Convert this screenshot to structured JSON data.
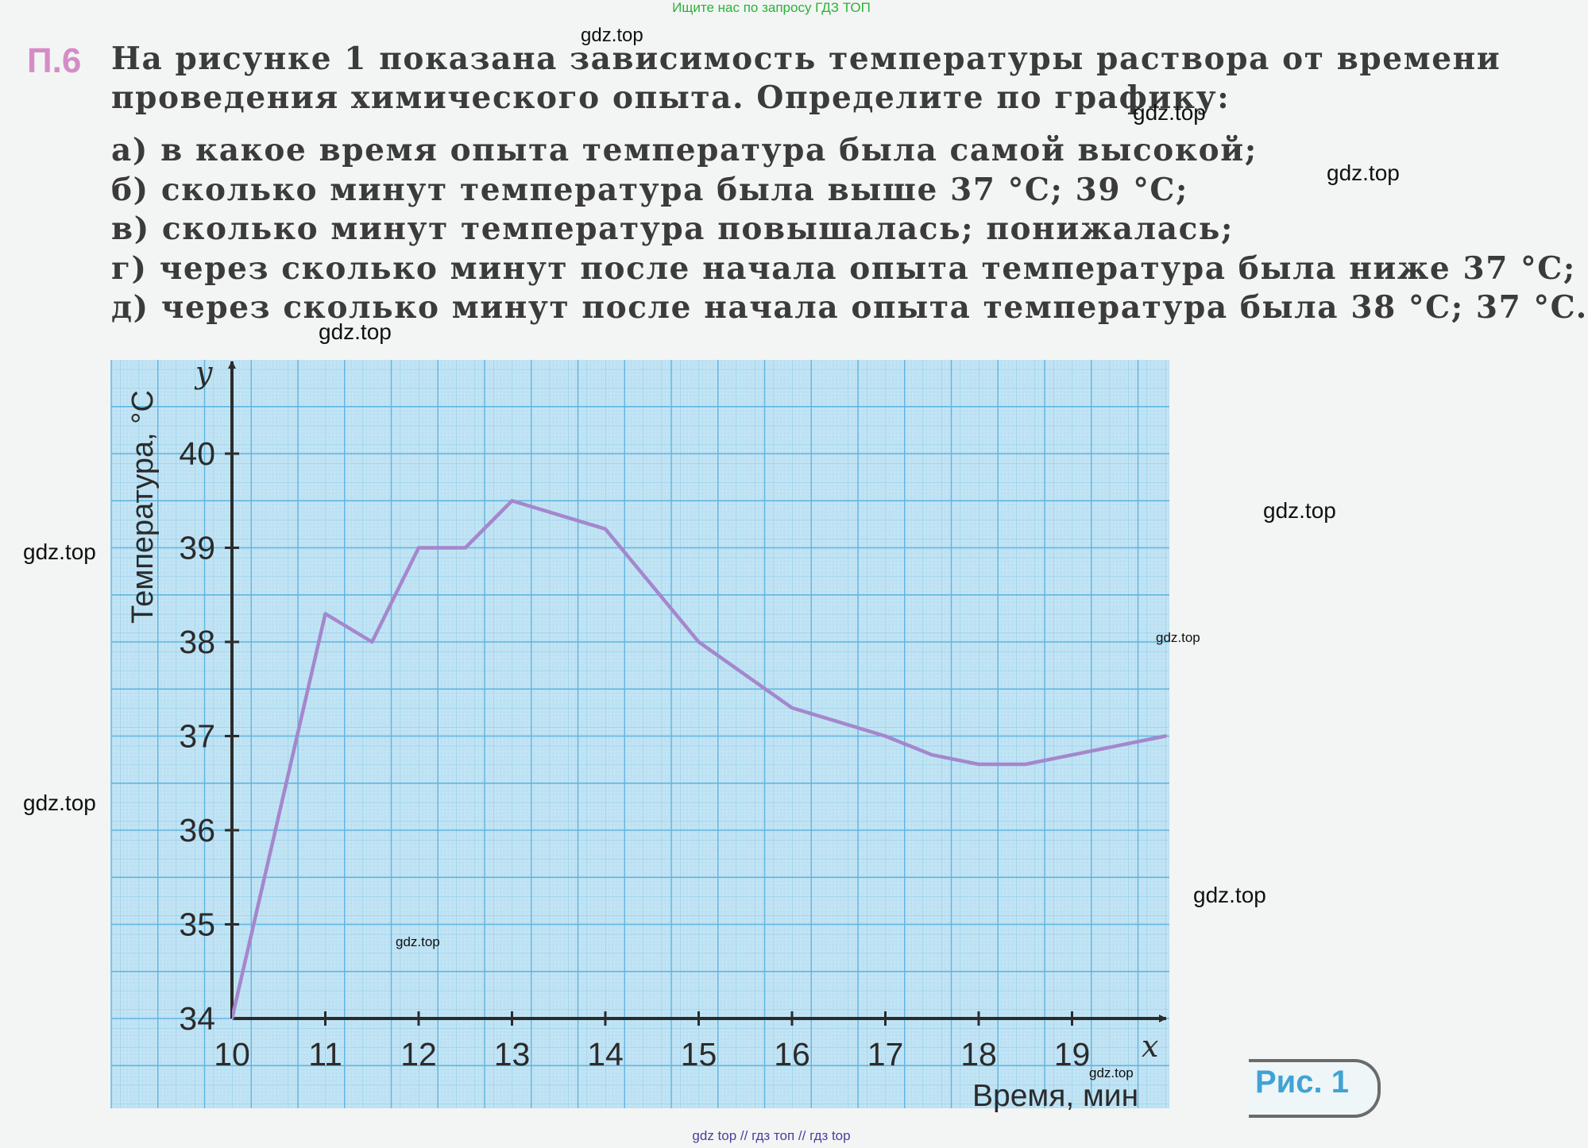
{
  "top_banner": "Ищите нас по запросу ГДЗ ТОП",
  "watermark": "gdz.top",
  "problem": {
    "number": "П.6",
    "text": "На рисунке 1 показана зависимость температуры раствора от времени проведения химического опыта. Определите по графику:",
    "questions": [
      "а) в какое время опыта температура была самой высокой;",
      "б) сколько минут температура была выше 37 °C; 39 °C;",
      "в) сколько минут температура повышалась; понижалась;",
      "г) через сколько минут после начала опыта температура была ниже 37 °C;",
      "д) через сколько минут после начала опыта температура была 38 °C; 37 °C."
    ]
  },
  "figure_label": "Рис. 1",
  "bottom_line": "gdz top  //  гдз топ  //  гдз top",
  "chart_data": {
    "type": "line",
    "xlabel": "Время, мин",
    "ylabel": "Температура, °C",
    "x_axis_letter": "x",
    "y_axis_letter": "y",
    "xlim": [
      10,
      19.85
    ],
    "ylim": [
      34,
      40.9
    ],
    "x_ticks": [
      10,
      11,
      12,
      13,
      14,
      15,
      16,
      17,
      18,
      19
    ],
    "y_ticks": [
      34,
      35,
      36,
      37,
      38,
      39,
      40
    ],
    "grid": true,
    "series": [
      {
        "x": [
          10,
          11,
          11.5,
          12,
          12.5,
          13,
          14,
          15,
          16,
          17,
          17.5,
          18,
          18.5,
          19,
          20
        ],
        "y": [
          34,
          38.3,
          38,
          39,
          39,
          39.5,
          39.2,
          38,
          37.3,
          37,
          36.8,
          36.7,
          36.7,
          36.8,
          37
        ]
      }
    ],
    "colors": {
      "grid_bg": "#c2e4f4",
      "grid_minor": "#8fcce9",
      "grid_major": "#5fb4e0",
      "line": "#a487cd",
      "axis": "#2b2b2b"
    }
  }
}
